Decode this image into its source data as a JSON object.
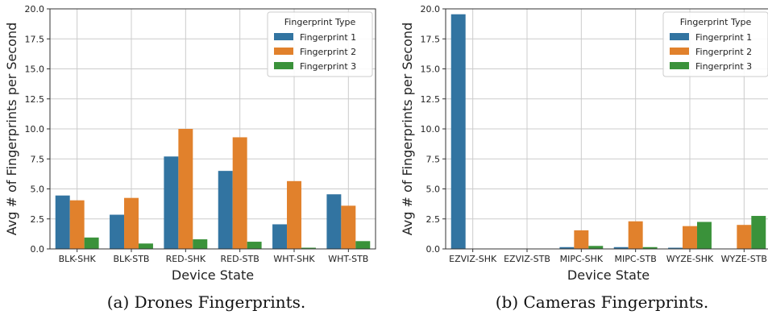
{
  "chart_data": [
    {
      "type": "bar",
      "caption": "(a) Drones Fingerprints.",
      "xlabel": "Device State",
      "ylabel": "Avg # of Fingerprints per Second",
      "ylim": [
        0,
        20
      ],
      "yticks": [
        "0.0",
        "2.5",
        "5.0",
        "7.5",
        "10.0",
        "12.5",
        "15.0",
        "17.5",
        "20.0"
      ],
      "categories": [
        "BLK-SHK",
        "BLK-STB",
        "RED-SHK",
        "RED-STB",
        "WHT-SHK",
        "WHT-STB"
      ],
      "series": [
        {
          "name": "Fingerprint 1",
          "values": [
            4.45,
            2.85,
            7.7,
            6.5,
            2.05,
            4.55
          ]
        },
        {
          "name": "Fingerprint 2",
          "values": [
            4.05,
            4.25,
            10.0,
            9.3,
            5.65,
            3.6
          ]
        },
        {
          "name": "Fingerprint 3",
          "values": [
            0.95,
            0.45,
            0.8,
            0.6,
            0.1,
            0.65
          ]
        }
      ],
      "grid": true,
      "legend": {
        "title": "Fingerprint Type",
        "position": "top-right"
      }
    },
    {
      "type": "bar",
      "caption": "(b) Cameras Fingerprints.",
      "xlabel": "Device State",
      "ylabel": "Avg # of Fingerprints per Second",
      "ylim": [
        0,
        20
      ],
      "yticks": [
        "0.0",
        "2.5",
        "5.0",
        "7.5",
        "10.0",
        "12.5",
        "15.0",
        "17.5",
        "20.0"
      ],
      "categories": [
        "EZVIZ-SHK",
        "EZVIZ-STB",
        "MIPC-SHK",
        "MIPC-STB",
        "WYZE-SHK",
        "WYZE-STB"
      ],
      "series": [
        {
          "name": "Fingerprint 1",
          "values": [
            19.55,
            0.0,
            0.15,
            0.15,
            0.1,
            0.0
          ]
        },
        {
          "name": "Fingerprint 2",
          "values": [
            0.0,
            0.0,
            1.55,
            2.3,
            1.9,
            2.0
          ]
        },
        {
          "name": "Fingerprint 3",
          "values": [
            0.0,
            0.0,
            0.25,
            0.15,
            2.25,
            2.75
          ]
        }
      ],
      "grid": true,
      "legend": {
        "title": "Fingerprint Type",
        "position": "top-right"
      }
    }
  ],
  "colors": [
    "#3274a1",
    "#e1812c",
    "#3a923a"
  ]
}
